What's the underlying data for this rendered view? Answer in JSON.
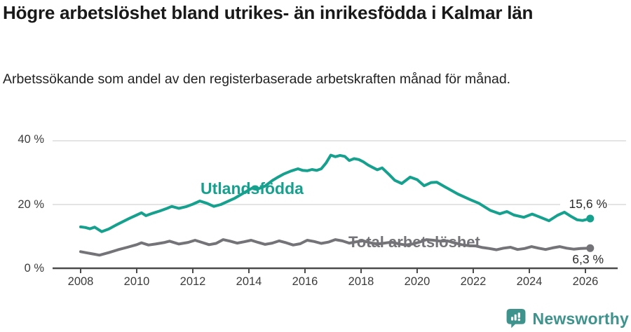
{
  "chart_data": {
    "type": "line",
    "title": "Högre arbetslöshet bland utrikes- än inrikesfödda i Kalmar län",
    "subtitle": "Arbetssökande som andel av den registerbaserade arbetskraften månad för månad.",
    "x_unit": "year",
    "xlim": [
      2007.9,
      2027.0
    ],
    "ylim": [
      0,
      44
    ],
    "grid": "horizontal-only",
    "grid_y_values": [
      20,
      40
    ],
    "y_ticks": [
      {
        "value": 0,
        "label": "0 %"
      },
      {
        "value": 20,
        "label": "20 %"
      },
      {
        "value": 40,
        "label": "40 %"
      }
    ],
    "x_ticks": [
      2008,
      2010,
      2012,
      2014,
      2016,
      2018,
      2020,
      2022,
      2024,
      2026
    ],
    "legend_position": "inline-labels",
    "series": [
      {
        "name": "Utlandsfödda",
        "color": "#16a08e",
        "end_label": "15,6 %",
        "end_value": 15.6,
        "points": [
          [
            2008.0,
            13.0
          ],
          [
            2008.17,
            12.8
          ],
          [
            2008.33,
            12.4
          ],
          [
            2008.5,
            12.9
          ],
          [
            2008.75,
            11.5
          ],
          [
            2009.0,
            12.3
          ],
          [
            2009.25,
            13.5
          ],
          [
            2009.5,
            14.6
          ],
          [
            2009.75,
            15.7
          ],
          [
            2010.0,
            16.7
          ],
          [
            2010.17,
            17.4
          ],
          [
            2010.33,
            16.5
          ],
          [
            2010.58,
            17.3
          ],
          [
            2010.83,
            18.0
          ],
          [
            2011.08,
            18.8
          ],
          [
            2011.25,
            19.4
          ],
          [
            2011.5,
            18.8
          ],
          [
            2011.75,
            19.3
          ],
          [
            2012.0,
            20.1
          ],
          [
            2012.25,
            21.1
          ],
          [
            2012.5,
            20.4
          ],
          [
            2012.75,
            19.4
          ],
          [
            2013.0,
            20.0
          ],
          [
            2013.25,
            21.0
          ],
          [
            2013.5,
            22.0
          ],
          [
            2013.75,
            23.3
          ],
          [
            2014.0,
            24.6
          ],
          [
            2014.17,
            25.4
          ],
          [
            2014.33,
            24.9
          ],
          [
            2014.58,
            25.8
          ],
          [
            2014.83,
            27.5
          ],
          [
            2015.0,
            28.4
          ],
          [
            2015.25,
            29.6
          ],
          [
            2015.5,
            30.5
          ],
          [
            2015.75,
            31.2
          ],
          [
            2015.92,
            30.7
          ],
          [
            2016.08,
            30.6
          ],
          [
            2016.25,
            31.0
          ],
          [
            2016.42,
            30.7
          ],
          [
            2016.58,
            31.2
          ],
          [
            2016.75,
            33.0
          ],
          [
            2016.92,
            35.5
          ],
          [
            2017.08,
            35.0
          ],
          [
            2017.25,
            35.4
          ],
          [
            2017.42,
            35.1
          ],
          [
            2017.58,
            33.8
          ],
          [
            2017.75,
            34.4
          ],
          [
            2017.92,
            34.1
          ],
          [
            2018.08,
            33.4
          ],
          [
            2018.25,
            32.4
          ],
          [
            2018.42,
            31.6
          ],
          [
            2018.58,
            30.9
          ],
          [
            2018.75,
            31.5
          ],
          [
            2019.0,
            29.4
          ],
          [
            2019.2,
            27.6
          ],
          [
            2019.45,
            26.6
          ],
          [
            2019.75,
            28.6
          ],
          [
            2020.0,
            27.8
          ],
          [
            2020.25,
            25.9
          ],
          [
            2020.5,
            26.9
          ],
          [
            2020.7,
            27.0
          ],
          [
            2021.0,
            25.5
          ],
          [
            2021.45,
            23.3
          ],
          [
            2021.9,
            21.5
          ],
          [
            2022.2,
            20.4
          ],
          [
            2022.6,
            18.2
          ],
          [
            2022.95,
            17.1
          ],
          [
            2023.2,
            17.8
          ],
          [
            2023.45,
            16.7
          ],
          [
            2023.8,
            16.0
          ],
          [
            2024.1,
            17.0
          ],
          [
            2024.45,
            15.8
          ],
          [
            2024.7,
            14.9
          ],
          [
            2025.0,
            16.6
          ],
          [
            2025.25,
            17.6
          ],
          [
            2025.5,
            16.2
          ],
          [
            2025.7,
            15.2
          ],
          [
            2025.9,
            15.0
          ],
          [
            2026.17,
            15.6
          ]
        ]
      },
      {
        "name": "Total arbetslöshet",
        "color": "#747378",
        "end_label": "6,3 %",
        "end_value": 6.3,
        "points": [
          [
            2008.0,
            5.2
          ],
          [
            2008.25,
            4.8
          ],
          [
            2008.5,
            4.4
          ],
          [
            2008.67,
            4.1
          ],
          [
            2009.0,
            4.9
          ],
          [
            2009.33,
            5.8
          ],
          [
            2009.67,
            6.6
          ],
          [
            2010.0,
            7.4
          ],
          [
            2010.17,
            8.0
          ],
          [
            2010.42,
            7.3
          ],
          [
            2010.67,
            7.6
          ],
          [
            2011.0,
            8.1
          ],
          [
            2011.17,
            8.5
          ],
          [
            2011.5,
            7.6
          ],
          [
            2011.83,
            8.1
          ],
          [
            2012.08,
            8.8
          ],
          [
            2012.33,
            8.1
          ],
          [
            2012.58,
            7.4
          ],
          [
            2012.83,
            7.8
          ],
          [
            2013.08,
            9.0
          ],
          [
            2013.33,
            8.5
          ],
          [
            2013.58,
            7.9
          ],
          [
            2013.83,
            8.3
          ],
          [
            2014.08,
            8.8
          ],
          [
            2014.33,
            8.1
          ],
          [
            2014.58,
            7.5
          ],
          [
            2014.83,
            7.9
          ],
          [
            2015.08,
            8.6
          ],
          [
            2015.33,
            8.0
          ],
          [
            2015.58,
            7.3
          ],
          [
            2015.83,
            7.7
          ],
          [
            2016.08,
            8.8
          ],
          [
            2016.33,
            8.4
          ],
          [
            2016.58,
            7.8
          ],
          [
            2016.83,
            8.2
          ],
          [
            2017.08,
            9.0
          ],
          [
            2017.33,
            8.6
          ],
          [
            2017.58,
            7.9
          ],
          [
            2017.83,
            8.3
          ],
          [
            2018.08,
            8.6
          ],
          [
            2018.33,
            8.0
          ],
          [
            2018.58,
            7.6
          ],
          [
            2018.83,
            7.9
          ],
          [
            2019.08,
            8.2
          ],
          [
            2019.33,
            7.7
          ],
          [
            2019.58,
            7.3
          ],
          [
            2019.83,
            7.6
          ],
          [
            2020.08,
            8.2
          ],
          [
            2020.33,
            9.0
          ],
          [
            2020.58,
            8.8
          ],
          [
            2020.83,
            8.5
          ],
          [
            2021.08,
            8.6
          ],
          [
            2021.33,
            8.0
          ],
          [
            2021.58,
            7.4
          ],
          [
            2021.83,
            7.1
          ],
          [
            2022.08,
            7.0
          ],
          [
            2022.33,
            6.5
          ],
          [
            2022.58,
            6.2
          ],
          [
            2022.83,
            5.8
          ],
          [
            2023.08,
            6.3
          ],
          [
            2023.33,
            6.6
          ],
          [
            2023.58,
            5.9
          ],
          [
            2023.83,
            6.2
          ],
          [
            2024.08,
            6.8
          ],
          [
            2024.33,
            6.3
          ],
          [
            2024.58,
            5.9
          ],
          [
            2024.83,
            6.4
          ],
          [
            2025.08,
            6.8
          ],
          [
            2025.33,
            6.3
          ],
          [
            2025.58,
            6.0
          ],
          [
            2025.83,
            6.2
          ],
          [
            2026.17,
            6.3
          ]
        ]
      }
    ]
  },
  "footer": {
    "brand": "Newsworthy",
    "logo_color": "#3e938d"
  }
}
